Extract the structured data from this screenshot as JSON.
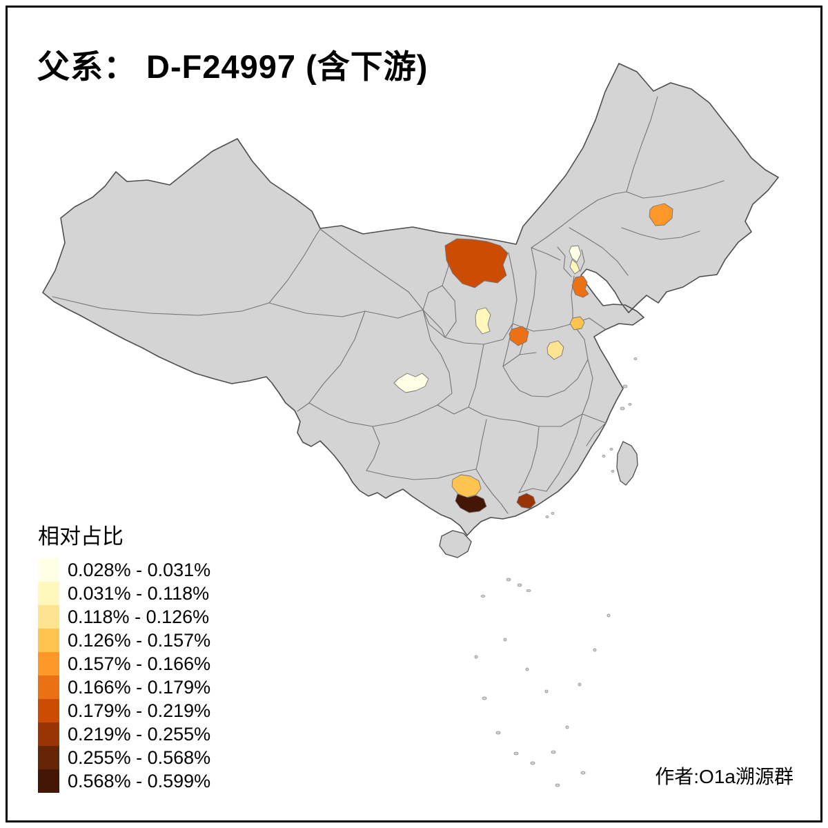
{
  "header": {
    "title": "父系： D-F24997 (含下游)"
  },
  "footer": {
    "attribution": "作者:O1a溯源群"
  },
  "legend": {
    "title": "相对占比",
    "items": [
      {
        "label": "0.028% - 0.031%",
        "color": "#FFFFE5"
      },
      {
        "label": "0.031% - 0.118%",
        "color": "#FFF7BC"
      },
      {
        "label": "0.118% - 0.126%",
        "color": "#FEE391"
      },
      {
        "label": "0.126% - 0.157%",
        "color": "#FEC44F"
      },
      {
        "label": "0.157% - 0.166%",
        "color": "#FE9929"
      },
      {
        "label": "0.166% - 0.179%",
        "color": "#EC7014"
      },
      {
        "label": "0.179% - 0.219%",
        "color": "#CC4C02"
      },
      {
        "label": "0.219% - 0.255%",
        "color": "#993404"
      },
      {
        "label": "0.255% - 0.568%",
        "color": "#662506"
      },
      {
        "label": "0.568% - 0.599%",
        "color": "#431605"
      }
    ]
  },
  "map": {
    "base_fill": "#D4D4D4",
    "outline_color": "#4D4D4D",
    "province_border_color": "#757575",
    "sea_mark_color": "#8A8A8A",
    "frame_color": "#000000",
    "background": "#FFFFFF",
    "regions": [
      {
        "name": "region-north-central-large",
        "legend_class": 7,
        "value_range": "0.179% - 0.219%"
      },
      {
        "name": "region-northeast",
        "legend_class": 5,
        "value_range": "0.157% - 0.166%"
      },
      {
        "name": "region-beijing-area-upper",
        "legend_class": 1,
        "value_range": "0.028% - 0.031%"
      },
      {
        "name": "region-beijing-area-lower",
        "legend_class": 2,
        "value_range": "0.031% - 0.118%"
      },
      {
        "name": "region-bohai-coast",
        "legend_class": 6,
        "value_range": "0.166% - 0.179%"
      },
      {
        "name": "region-north-shaanxi",
        "legend_class": 2,
        "value_range": "0.031% - 0.118%"
      },
      {
        "name": "region-south-shanxi",
        "legend_class": 6,
        "value_range": "0.166% - 0.179%"
      },
      {
        "name": "region-west-shandong",
        "legend_class": 4,
        "value_range": "0.126% - 0.157%"
      },
      {
        "name": "region-west-henan",
        "legend_class": 3,
        "value_range": "0.118% - 0.126%"
      },
      {
        "name": "region-sichuan-basin",
        "legend_class": 1,
        "value_range": "0.028% - 0.031%"
      },
      {
        "name": "region-guangxi-north",
        "legend_class": 4,
        "value_range": "0.126% - 0.157%"
      },
      {
        "name": "region-guangxi-south-dark",
        "legend_class": 10,
        "value_range": "0.568% - 0.599%"
      },
      {
        "name": "region-guangdong-coast",
        "legend_class": 8,
        "value_range": "0.219% - 0.255%"
      }
    ]
  },
  "chart_data": {
    "type": "heatmap",
    "subtype": "choropleth-map-of-china",
    "title": "父系： D-F24997 (含下游)",
    "legend_title": "相对占比",
    "value_unit": "%",
    "class_breaks": [
      0.028,
      0.031,
      0.118,
      0.126,
      0.157,
      0.166,
      0.179,
      0.219,
      0.255,
      0.568,
      0.599
    ],
    "legend_position": "bottom-left",
    "regions": [
      {
        "location": "north-central (Inner Mongolia area)",
        "class": "0.179% - 0.219%"
      },
      {
        "location": "northeast (Jilin area)",
        "class": "0.157% - 0.166%"
      },
      {
        "location": "Beijing area upper",
        "class": "0.028% - 0.031%"
      },
      {
        "location": "Beijing area lower",
        "class": "0.031% - 0.118%"
      },
      {
        "location": "Bohai coast (Hebei/Shandong)",
        "class": "0.166% - 0.179%"
      },
      {
        "location": "northern Shaanxi",
        "class": "0.031% - 0.118%"
      },
      {
        "location": "southern Shanxi",
        "class": "0.166% - 0.179%"
      },
      {
        "location": "western Shandong",
        "class": "0.126% - 0.157%"
      },
      {
        "location": "western Henan",
        "class": "0.118% - 0.126%"
      },
      {
        "location": "Sichuan basin",
        "class": "0.028% - 0.031%"
      },
      {
        "location": "Guangxi north blob",
        "class": "0.126% - 0.157%"
      },
      {
        "location": "Guangxi south blob (darkest)",
        "class": "0.568% - 0.599%"
      },
      {
        "location": "Guangdong coast",
        "class": "0.219% - 0.255%"
      }
    ]
  }
}
